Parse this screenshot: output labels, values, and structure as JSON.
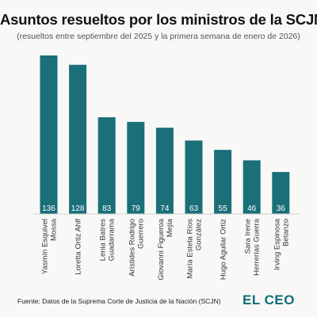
{
  "brand": {
    "logo": "EL CEO",
    "accent": "#0d6e79"
  },
  "source": "Fuente: Datos de la Suprema Corte de Justicia de la Nación (SCJN)",
  "chart_data": {
    "type": "bar",
    "title": "Asuntos resueltos por los ministros de la SCJN",
    "subtitle": "(resueltos entre septiembre del 2025 y la primera semana de enero de 2026)",
    "xlabel": "",
    "ylabel": "",
    "grid": false,
    "legend": "none",
    "ylim": [
      0,
      140
    ],
    "categories": [
      [
        "Yasmín Esquivel",
        "Mossa"
      ],
      [
        "Loretta Ortiz Ahlf"
      ],
      [
        "Lenia Batres",
        "Guadarrama"
      ],
      [
        "Arístides Rodrigo",
        "Guerrero"
      ],
      [
        "Giovanni Figueroa",
        "Mejía"
      ],
      [
        "María Estela Ríos",
        "González"
      ],
      [
        "Hugo Aguilar Ortiz"
      ],
      [
        "Sara Irene",
        "Herrerías Guerra"
      ],
      [
        "Irving Espinosa",
        "Betanzo"
      ]
    ],
    "values": [
      136,
      128,
      83,
      79,
      74,
      63,
      55,
      46,
      36
    ],
    "bar_color": "#1a6f79",
    "label_color": "#ffffff"
  }
}
